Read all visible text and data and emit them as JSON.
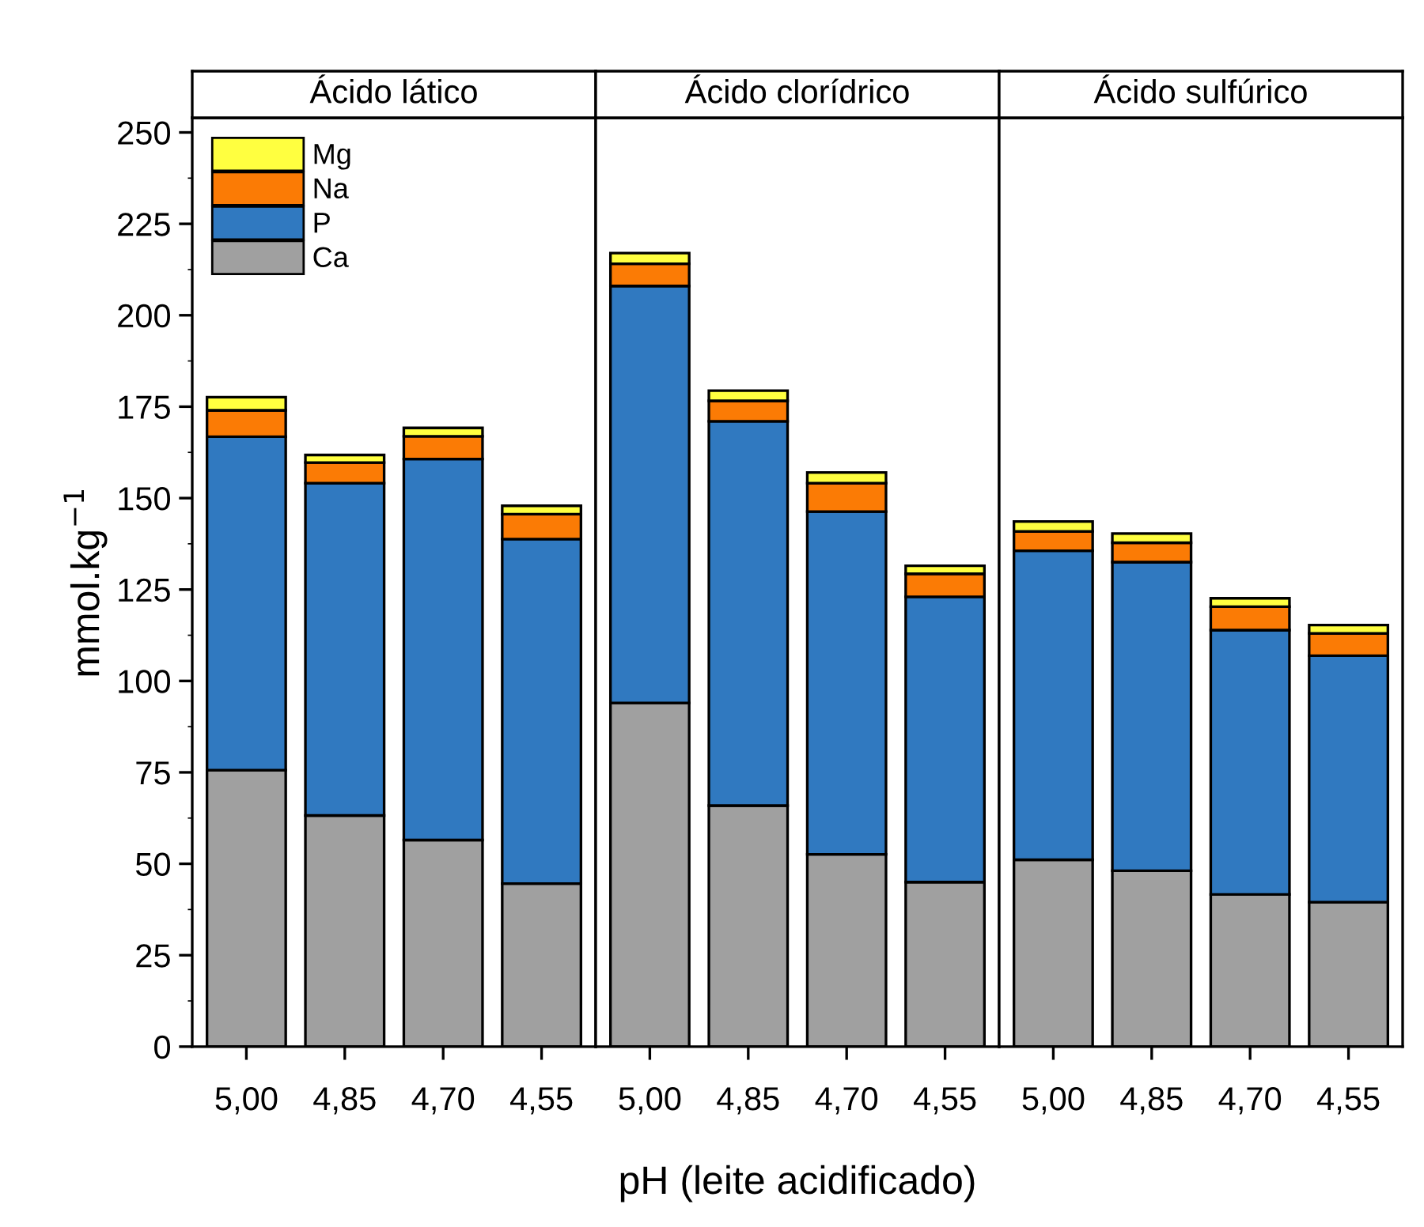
{
  "chart_data": [
    {
      "type": "bar",
      "title": "Ácido lático",
      "ylabel": "mmol.kg$^{−1}$",
      "categories": [
        "5,00",
        "4,85",
        "4,70",
        "4,55"
      ],
      "stacked": true,
      "legend": "top left",
      "ylim": [
        0,
        254
      ],
      "yticks": [
        0,
        25,
        50,
        75,
        100,
        125,
        150,
        175,
        200,
        225,
        250
      ],
      "series": [
        {
          "name": "Ca",
          "color": "#a0a0a0",
          "values": [
            75.6,
            63.2,
            56.5,
            44.6
          ]
        },
        {
          "name": "P",
          "color": "#3079c0",
          "values": [
            91.2,
            90.9,
            104.2,
            94.2
          ]
        },
        {
          "name": "Na",
          "color": "#fb7b05",
          "values": [
            7.2,
            5.6,
            6.2,
            6.8
          ]
        },
        {
          "name": "Mg",
          "color": "#ffff40",
          "values": [
            3.6,
            2.1,
            2.3,
            2.3
          ]
        }
      ]
    },
    {
      "type": "bar",
      "title": "Ácido clorídrico",
      "xlabel": "pH (leite acidificado)",
      "categories": [
        "5,00",
        "4,85",
        "4,70",
        "4,55"
      ],
      "stacked": true,
      "ylim": [
        0,
        254
      ],
      "tick_labels": "x",
      "series": [
        {
          "color": "#a0a0a0",
          "values": [
            94.0,
            65.9,
            52.6,
            45.0
          ]
        },
        {
          "color": "#3079c0",
          "values": [
            114.0,
            105.1,
            93.7,
            78.0
          ]
        },
        {
          "color": "#fb7b05",
          "values": [
            6.1,
            5.6,
            7.8,
            6.3
          ]
        },
        {
          "color": "#ffff40",
          "values": [
            2.9,
            2.8,
            2.9,
            2.2
          ]
        }
      ]
    },
    {
      "type": "bar",
      "title": "Ácido sulfúrico",
      "categories": [
        "5,00",
        "4,85",
        "4,70",
        "4,55"
      ],
      "stacked": true,
      "ylim": [
        0,
        254
      ],
      "tick_labels": "x",
      "series": [
        {
          "color": "#a0a0a0",
          "values": [
            51.1,
            48.1,
            41.6,
            39.5
          ]
        },
        {
          "color": "#3079c0",
          "values": [
            84.5,
            84.4,
            72.3,
            67.4
          ]
        },
        {
          "color": "#fb7b05",
          "values": [
            5.3,
            5.3,
            6.4,
            6.1
          ]
        },
        {
          "color": "#ffff40",
          "values": [
            2.7,
            2.5,
            2.3,
            2.3
          ]
        }
      ]
    }
  ]
}
